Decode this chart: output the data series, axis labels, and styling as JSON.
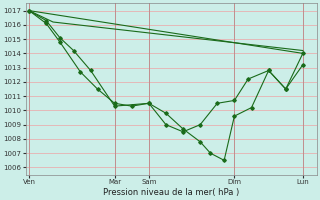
{
  "background_color": "#cceee8",
  "grid_color_h": "#e8b0b0",
  "grid_color_v": "#e8b0b0",
  "line_color": "#1a6b1a",
  "ylim": [
    1005.5,
    1017.5
  ],
  "yticks": [
    1006,
    1007,
    1008,
    1009,
    1010,
    1011,
    1012,
    1013,
    1014,
    1015,
    1016,
    1017
  ],
  "xlabel": "Pression niveau de la mer( hPa )",
  "xtick_labels": [
    "Ven",
    "Mar",
    "Sam",
    "Dim",
    "Lun"
  ],
  "xtick_positions": [
    0.0,
    2.5,
    3.5,
    6.0,
    8.0
  ],
  "line1_x": [
    0.0,
    8.0
  ],
  "line1_y": [
    1017.0,
    1014.0
  ],
  "line2_x": [
    0.0,
    0.7,
    8.0
  ],
  "line2_y": [
    1017.0,
    1016.2,
    1014.2
  ],
  "line3_x": [
    0.0,
    0.5,
    0.9,
    1.3,
    1.8,
    2.5,
    3.5,
    4.0,
    4.5,
    5.0,
    5.5,
    6.0,
    6.4,
    7.0,
    7.5,
    8.0
  ],
  "line3_y": [
    1017.0,
    1016.3,
    1015.1,
    1014.2,
    1012.8,
    1010.3,
    1010.5,
    1009.0,
    1008.5,
    1009.0,
    1010.5,
    1010.7,
    1012.2,
    1012.8,
    1011.5,
    1014.0
  ],
  "line4_x": [
    0.0,
    0.5,
    0.9,
    1.5,
    2.0,
    2.5,
    3.0,
    3.5,
    4.0,
    4.5,
    5.0,
    5.3,
    5.7,
    6.0,
    6.5,
    7.0,
    7.5,
    8.0
  ],
  "line4_y": [
    1017.0,
    1016.1,
    1014.8,
    1012.7,
    1011.5,
    1010.5,
    1010.3,
    1010.5,
    1009.8,
    1008.7,
    1007.8,
    1007.0,
    1006.5,
    1009.6,
    1010.2,
    1012.8,
    1011.5,
    1013.2
  ],
  "figsize": [
    3.2,
    2.0
  ],
  "dpi": 100
}
